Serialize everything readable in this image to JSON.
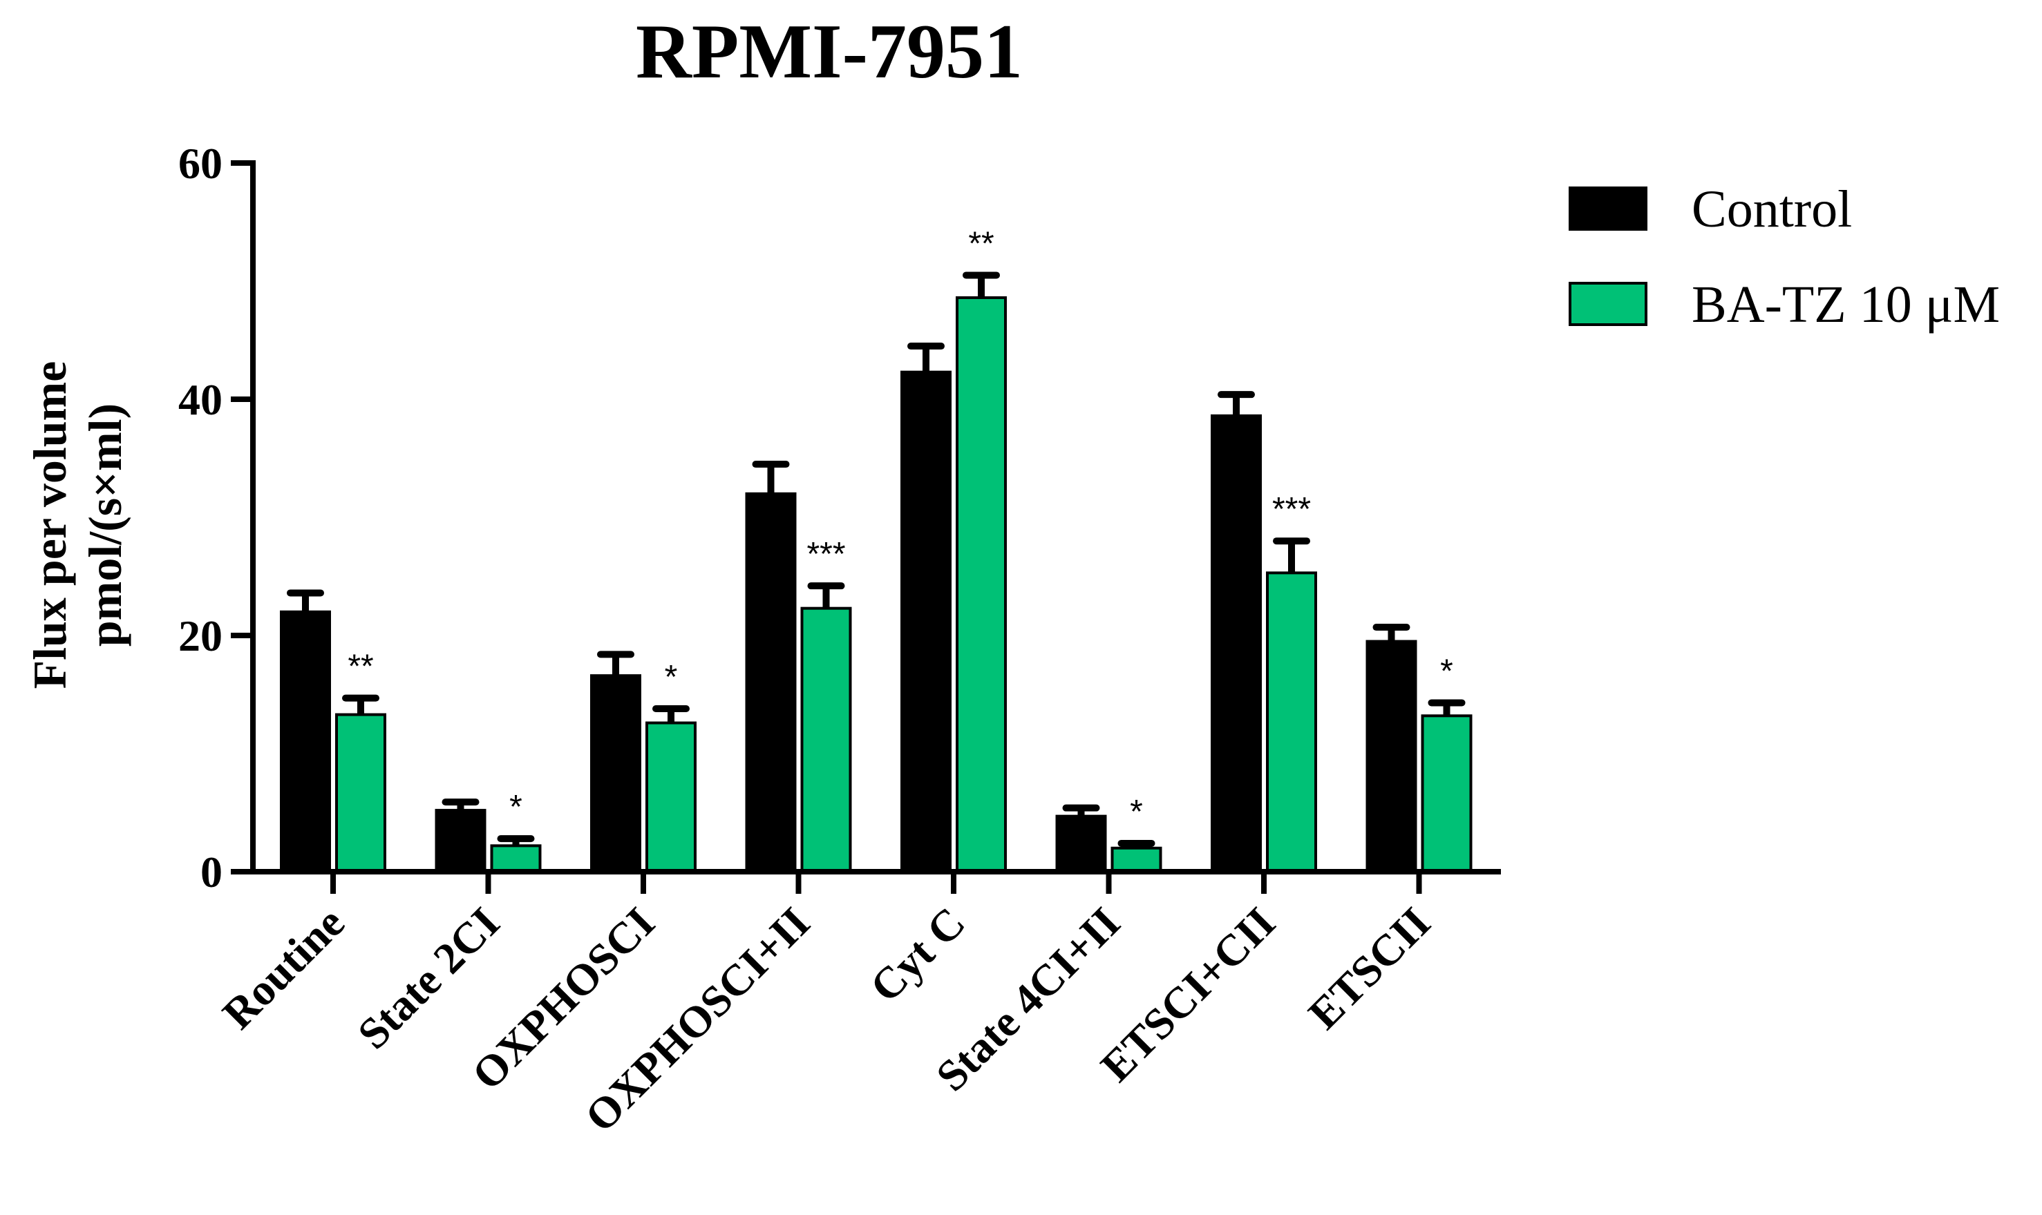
{
  "chart_data": {
    "type": "bar",
    "title": "RPMI-7951",
    "ylabel_lines": [
      "Flux per volume",
      "pmol/(s×ml)"
    ],
    "ylim": [
      0,
      60
    ],
    "yticks": [
      "0",
      "20",
      "40",
      "60"
    ],
    "categories": [
      "Routine",
      "State 2CI",
      "OXPHOSCI",
      "OXPHOSCI+II",
      "Cyt C",
      "State 4CI+II",
      "ETSCI+CII",
      "ETSCII"
    ],
    "series": [
      {
        "name": "Control",
        "color": "#000000",
        "values": [
          22,
          5.2,
          16.6,
          32,
          42.3,
          4.7,
          38.6,
          19.5
        ],
        "errors": [
          1.6,
          0.7,
          1.8,
          2.5,
          2.2,
          0.7,
          1.8,
          1.2
        ]
      },
      {
        "name": "BA-TZ 10 μM",
        "color": "#00c176",
        "values": [
          13.3,
          2.2,
          12.6,
          22.3,
          48.6,
          2.0,
          25.3,
          13.2
        ],
        "errors": [
          1.4,
          0.6,
          1.2,
          1.9,
          1.9,
          0.4,
          2.7,
          1.1
        ],
        "significance": [
          "**",
          "*",
          "*",
          "***",
          "**",
          "*",
          "***",
          "*"
        ]
      }
    ],
    "legend_position": "top-right",
    "grid": false
  }
}
